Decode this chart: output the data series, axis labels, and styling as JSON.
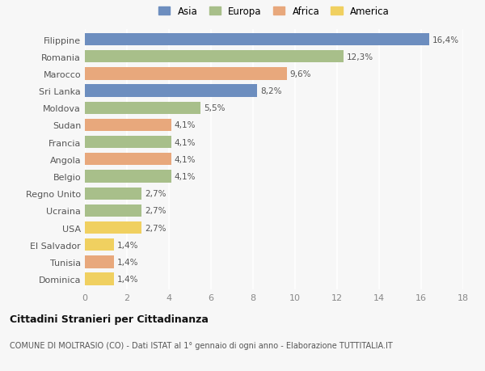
{
  "countries": [
    "Filippine",
    "Romania",
    "Marocco",
    "Sri Lanka",
    "Moldova",
    "Sudan",
    "Francia",
    "Angola",
    "Belgio",
    "Regno Unito",
    "Ucraina",
    "USA",
    "El Salvador",
    "Tunisia",
    "Dominica"
  ],
  "values": [
    16.4,
    12.3,
    9.6,
    8.2,
    5.5,
    4.1,
    4.1,
    4.1,
    4.1,
    2.7,
    2.7,
    2.7,
    1.4,
    1.4,
    1.4
  ],
  "labels": [
    "16,4%",
    "12,3%",
    "9,6%",
    "8,2%",
    "5,5%",
    "4,1%",
    "4,1%",
    "4,1%",
    "4,1%",
    "2,7%",
    "2,7%",
    "2,7%",
    "1,4%",
    "1,4%",
    "1,4%"
  ],
  "continents": [
    "Asia",
    "Europa",
    "Africa",
    "Asia",
    "Europa",
    "Africa",
    "Europa",
    "Africa",
    "Europa",
    "Europa",
    "Europa",
    "America",
    "America",
    "Africa",
    "America"
  ],
  "colors": {
    "Asia": "#6d8ebf",
    "Europa": "#a8bf8a",
    "Africa": "#e8a87c",
    "America": "#f0d060"
  },
  "title": "Cittadini Stranieri per Cittadinanza",
  "subtitle": "COMUNE DI MOLTRASIO (CO) - Dati ISTAT al 1° gennaio di ogni anno - Elaborazione TUTTITALIA.IT",
  "xlim": [
    0,
    18
  ],
  "xticks": [
    0,
    2,
    4,
    6,
    8,
    10,
    12,
    14,
    16,
    18
  ],
  "background_color": "#f7f7f7",
  "grid_color": "#ffffff",
  "bar_height": 0.72
}
